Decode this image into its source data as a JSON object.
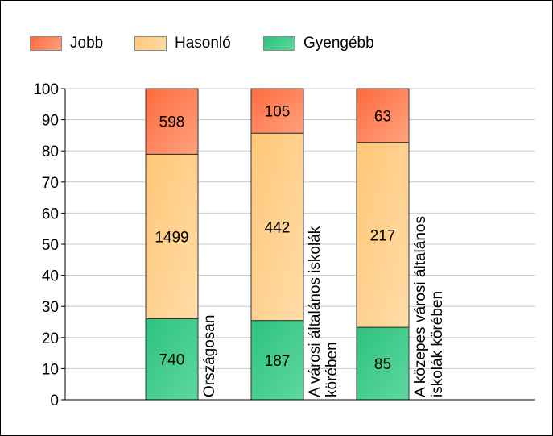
{
  "chart_data": {
    "type": "bar",
    "stacked": true,
    "normalized": true,
    "categories": [
      "Országosan",
      "A városi általános iskolák körében",
      "A közepes városi általános iskolák körében"
    ],
    "category_label_lines": [
      [
        "Országosan"
      ],
      [
        "A városi általános iskolák",
        "körében"
      ],
      [
        "A közepes városi általános",
        "iskolák körében"
      ]
    ],
    "series": [
      {
        "name": "Gyengébb",
        "values": [
          740,
          187,
          85
        ],
        "color_top": "#2ec27e",
        "color_bottom": "#5ed89e"
      },
      {
        "name": "Hasonló",
        "values": [
          1499,
          442,
          217
        ],
        "color_top": "#ffc677",
        "color_bottom": "#ffdca8"
      },
      {
        "name": "Jobb",
        "values": [
          598,
          105,
          63
        ],
        "color_top": "#ff6a3d",
        "color_bottom": "#ffa27f"
      }
    ],
    "legend_order": [
      "Jobb",
      "Hasonló",
      "Gyengébb"
    ],
    "legend_position": "top-left",
    "ylim": [
      0,
      100
    ],
    "yticks": [
      "0",
      "10",
      "20",
      "30",
      "40",
      "50",
      "60",
      "70",
      "80",
      "90",
      "100"
    ],
    "grid": true,
    "xlabel": "",
    "ylabel": "",
    "title": ""
  }
}
